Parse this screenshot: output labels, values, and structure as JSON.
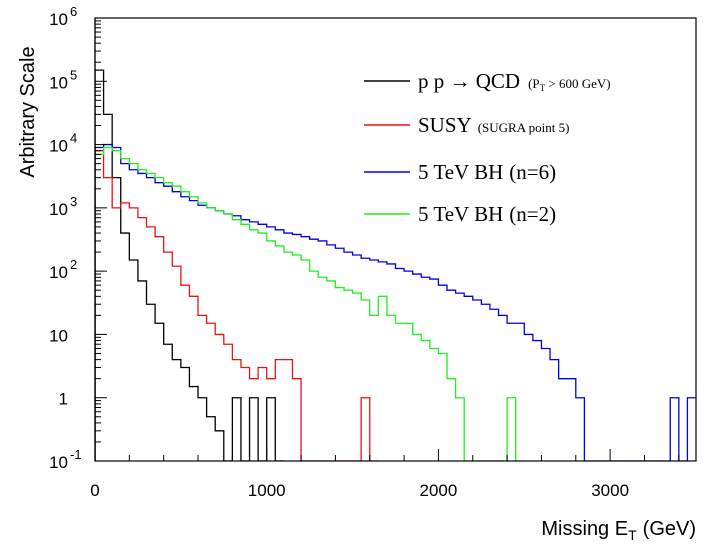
{
  "chart_data": {
    "type": "line",
    "subtype": "step-histogram",
    "title": "",
    "xlabel": "Missing E",
    "xlabel_sub": "T",
    "xlabel_unit": "(GeV)",
    "ylabel": "Arbitrary Scale",
    "xlim": [
      0,
      3500
    ],
    "ylim": [
      0.1,
      1000000
    ],
    "y_log_scale": true,
    "grid": false,
    "legend_position": "top-right",
    "x_ticks": [
      {
        "value": 0,
        "label": "0"
      },
      {
        "value": 1000,
        "label": "1000"
      },
      {
        "value": 2000,
        "label": "2000"
      },
      {
        "value": 3000,
        "label": "3000"
      }
    ],
    "y_ticks": [
      {
        "value": 0.1,
        "base": "10",
        "exp": "-1"
      },
      {
        "value": 1,
        "base": "1",
        "exp": ""
      },
      {
        "value": 10,
        "base": "10",
        "exp": ""
      },
      {
        "value": 100,
        "base": "10",
        "exp": "2"
      },
      {
        "value": 1000,
        "base": "10",
        "exp": "3"
      },
      {
        "value": 10000,
        "base": "10",
        "exp": "4"
      },
      {
        "value": 100000,
        "base": "10",
        "exp": "5"
      },
      {
        "value": 1000000,
        "base": "10",
        "exp": "6"
      }
    ],
    "bin_width": 50,
    "series": [
      {
        "name": "p p → QCD",
        "note": "(P",
        "note_sub": "T",
        "note_end": " > 600 GeV)",
        "color": "#000000",
        "x": [
          0,
          50,
          100,
          150,
          200,
          250,
          300,
          350,
          400,
          450,
          500,
          550,
          600,
          650,
          700,
          750,
          800,
          850,
          900,
          950,
          1000,
          1050
        ],
        "values": [
          150000,
          30000,
          3000,
          400,
          150,
          70,
          30,
          15,
          7,
          4,
          3,
          1.5,
          1,
          0.5,
          0.3,
          0.1,
          1,
          0.1,
          1,
          0.1,
          1,
          0.1
        ]
      },
      {
        "name": "SUSY",
        "note": "(SUGRA point 5)",
        "color": "#ee1111",
        "x": [
          0,
          50,
          100,
          150,
          200,
          250,
          300,
          350,
          400,
          450,
          500,
          550,
          600,
          650,
          700,
          750,
          800,
          850,
          900,
          950,
          1000,
          1050,
          1100,
          1150,
          1200,
          1250,
          1300,
          1350,
          1400,
          1450,
          1500,
          1550,
          1600
        ],
        "values": [
          8000,
          3000,
          1000,
          1200,
          1000,
          700,
          500,
          350,
          200,
          120,
          60,
          40,
          20,
          15,
          10,
          7,
          4,
          3,
          2,
          3,
          2,
          4,
          4,
          2,
          0.1,
          0.1,
          0.1,
          0.1,
          0.1,
          0.1,
          0.1,
          1,
          0.1
        ]
      },
      {
        "name": "5 TeV BH",
        "note": "(n=6)",
        "color": "#0000dd",
        "x": [
          0,
          50,
          100,
          150,
          200,
          250,
          300,
          350,
          400,
          450,
          500,
          550,
          600,
          650,
          700,
          750,
          800,
          850,
          900,
          950,
          1000,
          1050,
          1100,
          1150,
          1200,
          1250,
          1300,
          1350,
          1400,
          1450,
          1500,
          1550,
          1600,
          1650,
          1700,
          1750,
          1800,
          1850,
          1900,
          1950,
          2000,
          2050,
          2100,
          2150,
          2200,
          2250,
          2300,
          2350,
          2400,
          2450,
          2500,
          2550,
          2600,
          2650,
          2700,
          2750,
          2800,
          2850,
          2900,
          2950,
          3000,
          3050,
          3100,
          3150,
          3200,
          3250,
          3300,
          3350,
          3400,
          3450
        ],
        "values": [
          9000,
          10000,
          9000,
          5000,
          4000,
          3500,
          3000,
          2500,
          2200,
          1800,
          1500,
          1300,
          1100,
          1000,
          900,
          800,
          750,
          650,
          600,
          550,
          500,
          450,
          400,
          380,
          350,
          320,
          300,
          260,
          230,
          200,
          180,
          160,
          150,
          140,
          130,
          110,
          100,
          90,
          80,
          75,
          60,
          50,
          45,
          40,
          35,
          30,
          25,
          20,
          15,
          15,
          10,
          8,
          6,
          4,
          2,
          2,
          1,
          0.1,
          0.1,
          0.1,
          0.1,
          0.1,
          0.1,
          0.1,
          0.1,
          0.1,
          0.1,
          1,
          0.1,
          1
        ]
      },
      {
        "name": "5 TeV BH",
        "note": "(n=2)",
        "color": "#22ee22",
        "x": [
          0,
          50,
          100,
          150,
          200,
          250,
          300,
          350,
          400,
          450,
          500,
          550,
          600,
          650,
          700,
          750,
          800,
          850,
          900,
          950,
          1000,
          1050,
          1100,
          1150,
          1200,
          1250,
          1300,
          1350,
          1400,
          1450,
          1500,
          1550,
          1600,
          1650,
          1700,
          1750,
          1800,
          1850,
          1900,
          1950,
          2000,
          2050,
          2100,
          2150,
          2200,
          2250,
          2300,
          2350,
          2400,
          2450
        ],
        "values": [
          7000,
          9000,
          8000,
          6000,
          5000,
          4000,
          3500,
          3000,
          2500,
          2200,
          1800,
          1500,
          1200,
          1000,
          900,
          800,
          650,
          550,
          450,
          400,
          300,
          250,
          200,
          180,
          150,
          100,
          80,
          70,
          55,
          50,
          45,
          35,
          20,
          40,
          20,
          15,
          15,
          10,
          8,
          6,
          5,
          2,
          1,
          0.1,
          0.1,
          0.1,
          0.1,
          0.1,
          1,
          0.1
        ]
      }
    ]
  },
  "axis_labels": {
    "y_title": "Arbitrary Scale",
    "x_title_main": "Missing E",
    "x_title_sub": "T",
    "x_title_unit": "(GeV)"
  }
}
